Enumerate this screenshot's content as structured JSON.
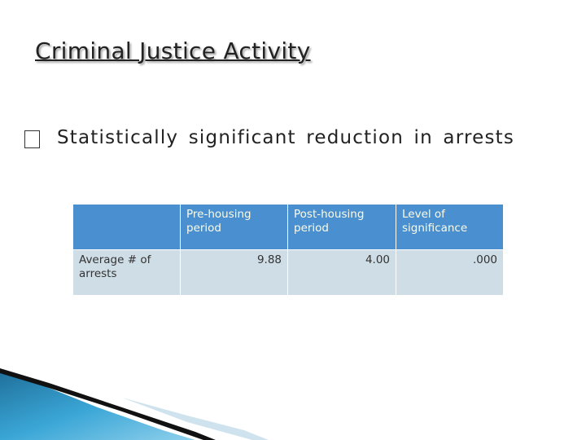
{
  "title": "Criminal Justice Activity",
  "bullet": "Statistically significant reduction in arrests",
  "table": {
    "header": [
      "Pre-housing period",
      "Post-housing period",
      "Level of significance"
    ],
    "rows": [
      [
        "Average # of arrests",
        "9.88",
        "4.00",
        ".000"
      ]
    ]
  }
}
